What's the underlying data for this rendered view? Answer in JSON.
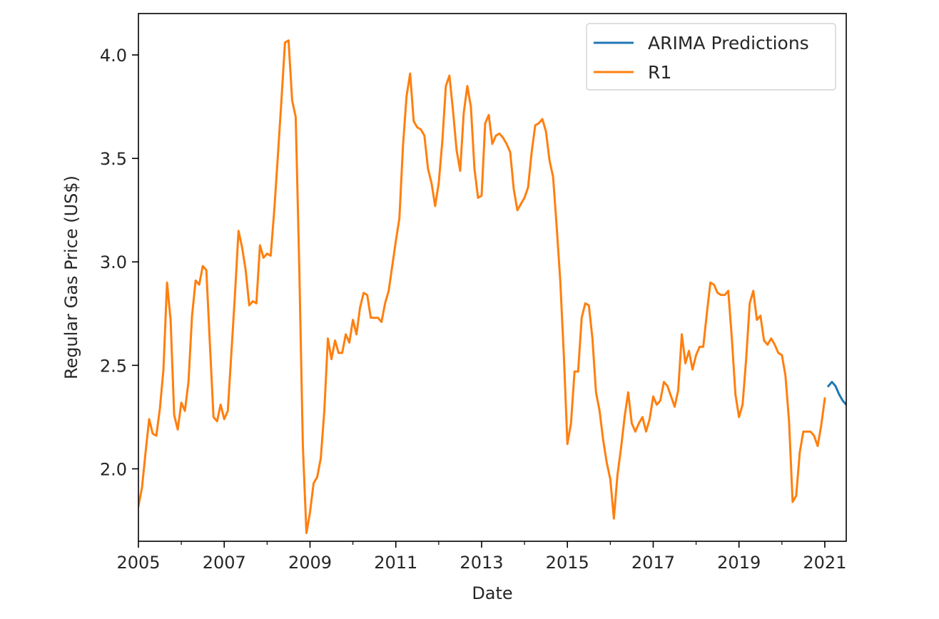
{
  "chart_data": {
    "type": "line",
    "xlabel": "Date",
    "ylabel": "Regular Gas Price (US$)",
    "xlim": [
      2005.0,
      2021.5
    ],
    "ylim": [
      1.65,
      4.2
    ],
    "x_ticks": [
      2005,
      2007,
      2009,
      2011,
      2013,
      2015,
      2017,
      2019,
      2021
    ],
    "x_tick_labels": [
      "2005",
      "2007",
      "2009",
      "2011",
      "2013",
      "2015",
      "2017",
      "2019",
      "2021"
    ],
    "y_ticks": [
      2.0,
      2.5,
      3.0,
      3.5,
      4.0
    ],
    "y_tick_labels": [
      "2.0",
      "2.5",
      "3.0",
      "3.5",
      "4.0"
    ],
    "minor_x_ticks": [
      2006,
      2008,
      2010,
      2012,
      2014,
      2016,
      2018,
      2020
    ],
    "grid": false,
    "legend": {
      "position": "upper right",
      "entries": [
        "ARIMA Predictions",
        "R1"
      ]
    },
    "series": [
      {
        "name": "ARIMA Predictions",
        "color": "#1f77b4",
        "points": [
          [
            "2021-02",
            2.4
          ],
          [
            "2021-03",
            2.42
          ],
          [
            "2021-04",
            2.4
          ],
          [
            "2021-05",
            2.36
          ],
          [
            "2021-06",
            2.33
          ],
          [
            "2021-07",
            2.31
          ]
        ]
      },
      {
        "name": "R1",
        "color": "#ff7f0e",
        "points": [
          [
            "2005-01",
            1.82
          ],
          [
            "2005-02",
            1.91
          ],
          [
            "2005-03",
            2.08
          ],
          [
            "2005-04",
            2.24
          ],
          [
            "2005-05",
            2.17
          ],
          [
            "2005-06",
            2.16
          ],
          [
            "2005-07",
            2.29
          ],
          [
            "2005-08",
            2.48
          ],
          [
            "2005-09",
            2.9
          ],
          [
            "2005-10",
            2.72
          ],
          [
            "2005-11",
            2.26
          ],
          [
            "2005-12",
            2.19
          ],
          [
            "2006-01",
            2.32
          ],
          [
            "2006-02",
            2.28
          ],
          [
            "2006-03",
            2.42
          ],
          [
            "2006-04",
            2.74
          ],
          [
            "2006-05",
            2.91
          ],
          [
            "2006-06",
            2.89
          ],
          [
            "2006-07",
            2.98
          ],
          [
            "2006-08",
            2.96
          ],
          [
            "2006-09",
            2.6
          ],
          [
            "2006-10",
            2.25
          ],
          [
            "2006-11",
            2.23
          ],
          [
            "2006-12",
            2.31
          ],
          [
            "2007-01",
            2.24
          ],
          [
            "2007-02",
            2.28
          ],
          [
            "2007-03",
            2.56
          ],
          [
            "2007-04",
            2.84
          ],
          [
            "2007-05",
            3.15
          ],
          [
            "2007-06",
            3.07
          ],
          [
            "2007-07",
            2.96
          ],
          [
            "2007-08",
            2.79
          ],
          [
            "2007-09",
            2.81
          ],
          [
            "2007-10",
            2.8
          ],
          [
            "2007-11",
            3.08
          ],
          [
            "2007-12",
            3.02
          ],
          [
            "2008-01",
            3.04
          ],
          [
            "2008-02",
            3.03
          ],
          [
            "2008-03",
            3.25
          ],
          [
            "2008-04",
            3.51
          ],
          [
            "2008-05",
            3.78
          ],
          [
            "2008-06",
            4.06
          ],
          [
            "2008-07",
            4.07
          ],
          [
            "2008-08",
            3.78
          ],
          [
            "2008-09",
            3.7
          ],
          [
            "2008-10",
            2.97
          ],
          [
            "2008-11",
            2.11
          ],
          [
            "2008-12",
            1.69
          ],
          [
            "2009-01",
            1.79
          ],
          [
            "2009-02",
            1.93
          ],
          [
            "2009-03",
            1.96
          ],
          [
            "2009-04",
            2.05
          ],
          [
            "2009-05",
            2.28
          ],
          [
            "2009-06",
            2.63
          ],
          [
            "2009-07",
            2.53
          ],
          [
            "2009-08",
            2.62
          ],
          [
            "2009-09",
            2.56
          ],
          [
            "2009-10",
            2.56
          ],
          [
            "2009-11",
            2.65
          ],
          [
            "2009-12",
            2.61
          ],
          [
            "2010-01",
            2.72
          ],
          [
            "2010-02",
            2.65
          ],
          [
            "2010-03",
            2.78
          ],
          [
            "2010-04",
            2.85
          ],
          [
            "2010-05",
            2.84
          ],
          [
            "2010-06",
            2.73
          ],
          [
            "2010-07",
            2.73
          ],
          [
            "2010-08",
            2.73
          ],
          [
            "2010-09",
            2.71
          ],
          [
            "2010-10",
            2.8
          ],
          [
            "2010-11",
            2.86
          ],
          [
            "2010-12",
            2.98
          ],
          [
            "2011-01",
            3.1
          ],
          [
            "2011-02",
            3.21
          ],
          [
            "2011-03",
            3.56
          ],
          [
            "2011-04",
            3.8
          ],
          [
            "2011-05",
            3.91
          ],
          [
            "2011-06",
            3.68
          ],
          [
            "2011-07",
            3.65
          ],
          [
            "2011-08",
            3.64
          ],
          [
            "2011-09",
            3.61
          ],
          [
            "2011-10",
            3.45
          ],
          [
            "2011-11",
            3.38
          ],
          [
            "2011-12",
            3.27
          ],
          [
            "2012-01",
            3.38
          ],
          [
            "2012-02",
            3.58
          ],
          [
            "2012-03",
            3.85
          ],
          [
            "2012-04",
            3.9
          ],
          [
            "2012-05",
            3.73
          ],
          [
            "2012-06",
            3.54
          ],
          [
            "2012-07",
            3.44
          ],
          [
            "2012-08",
            3.72
          ],
          [
            "2012-09",
            3.85
          ],
          [
            "2012-10",
            3.75
          ],
          [
            "2012-11",
            3.45
          ],
          [
            "2012-12",
            3.31
          ],
          [
            "2013-01",
            3.32
          ],
          [
            "2013-02",
            3.67
          ],
          [
            "2013-03",
            3.71
          ],
          [
            "2013-04",
            3.57
          ],
          [
            "2013-05",
            3.61
          ],
          [
            "2013-06",
            3.62
          ],
          [
            "2013-07",
            3.6
          ],
          [
            "2013-08",
            3.57
          ],
          [
            "2013-09",
            3.53
          ],
          [
            "2013-10",
            3.35
          ],
          [
            "2013-11",
            3.25
          ],
          [
            "2013-12",
            3.28
          ],
          [
            "2014-01",
            3.31
          ],
          [
            "2014-02",
            3.36
          ],
          [
            "2014-03",
            3.53
          ],
          [
            "2014-04",
            3.66
          ],
          [
            "2014-05",
            3.67
          ],
          [
            "2014-06",
            3.69
          ],
          [
            "2014-07",
            3.63
          ],
          [
            "2014-08",
            3.49
          ],
          [
            "2014-09",
            3.41
          ],
          [
            "2014-10",
            3.17
          ],
          [
            "2014-11",
            2.91
          ],
          [
            "2014-12",
            2.55
          ],
          [
            "2015-01",
            2.12
          ],
          [
            "2015-02",
            2.22
          ],
          [
            "2015-03",
            2.47
          ],
          [
            "2015-04",
            2.47
          ],
          [
            "2015-05",
            2.73
          ],
          [
            "2015-06",
            2.8
          ],
          [
            "2015-07",
            2.79
          ],
          [
            "2015-08",
            2.63
          ],
          [
            "2015-09",
            2.37
          ],
          [
            "2015-10",
            2.28
          ],
          [
            "2015-11",
            2.14
          ],
          [
            "2015-12",
            2.03
          ],
          [
            "2016-01",
            1.95
          ],
          [
            "2016-02",
            1.76
          ],
          [
            "2016-03",
            1.97
          ],
          [
            "2016-04",
            2.1
          ],
          [
            "2016-05",
            2.25
          ],
          [
            "2016-06",
            2.37
          ],
          [
            "2016-07",
            2.22
          ],
          [
            "2016-08",
            2.18
          ],
          [
            "2016-09",
            2.22
          ],
          [
            "2016-10",
            2.25
          ],
          [
            "2016-11",
            2.18
          ],
          [
            "2016-12",
            2.24
          ],
          [
            "2017-01",
            2.35
          ],
          [
            "2017-02",
            2.31
          ],
          [
            "2017-03",
            2.33
          ],
          [
            "2017-04",
            2.42
          ],
          [
            "2017-05",
            2.4
          ],
          [
            "2017-06",
            2.35
          ],
          [
            "2017-07",
            2.3
          ],
          [
            "2017-08",
            2.38
          ],
          [
            "2017-09",
            2.65
          ],
          [
            "2017-10",
            2.51
          ],
          [
            "2017-11",
            2.57
          ],
          [
            "2017-12",
            2.48
          ],
          [
            "2018-01",
            2.55
          ],
          [
            "2018-02",
            2.59
          ],
          [
            "2018-03",
            2.59
          ],
          [
            "2018-04",
            2.75
          ],
          [
            "2018-05",
            2.9
          ],
          [
            "2018-06",
            2.89
          ],
          [
            "2018-07",
            2.85
          ],
          [
            "2018-08",
            2.84
          ],
          [
            "2018-09",
            2.84
          ],
          [
            "2018-10",
            2.86
          ],
          [
            "2018-11",
            2.63
          ],
          [
            "2018-12",
            2.36
          ],
          [
            "2019-01",
            2.25
          ],
          [
            "2019-02",
            2.31
          ],
          [
            "2019-03",
            2.53
          ],
          [
            "2019-04",
            2.8
          ],
          [
            "2019-05",
            2.86
          ],
          [
            "2019-06",
            2.72
          ],
          [
            "2019-07",
            2.74
          ],
          [
            "2019-08",
            2.62
          ],
          [
            "2019-09",
            2.6
          ],
          [
            "2019-10",
            2.63
          ],
          [
            "2019-11",
            2.6
          ],
          [
            "2019-12",
            2.56
          ],
          [
            "2020-01",
            2.55
          ],
          [
            "2020-02",
            2.45
          ],
          [
            "2020-03",
            2.23
          ],
          [
            "2020-04",
            1.84
          ],
          [
            "2020-05",
            1.87
          ],
          [
            "2020-06",
            2.08
          ],
          [
            "2020-07",
            2.18
          ],
          [
            "2020-08",
            2.18
          ],
          [
            "2020-09",
            2.18
          ],
          [
            "2020-10",
            2.16
          ],
          [
            "2020-11",
            2.11
          ],
          [
            "2020-12",
            2.21
          ],
          [
            "2021-01",
            2.34
          ]
        ]
      }
    ]
  }
}
